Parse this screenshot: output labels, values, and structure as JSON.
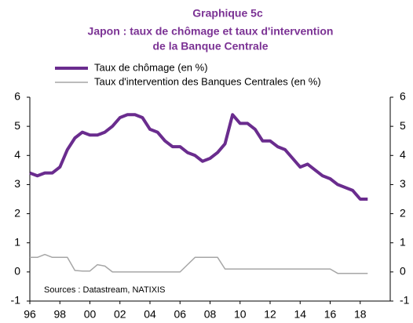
{
  "chart_data": {
    "type": "line",
    "title": "Graphique 5c",
    "subtitle": [
      "Japon : taux de chômage et taux d'intervention",
      "de la Banque Centrale"
    ],
    "annotation": "Sources : Datastream,  NATIXIS",
    "x": [
      1996,
      1996.5,
      1997,
      1997.5,
      1998,
      1998.5,
      1999,
      1999.5,
      2000,
      2000.5,
      2001,
      2001.5,
      2002,
      2002.5,
      2003,
      2003.5,
      2004,
      2004.5,
      2005,
      2005.5,
      2006,
      2006.5,
      2007,
      2007.5,
      2008,
      2008.5,
      2009,
      2009.5,
      2010,
      2010.5,
      2011,
      2011.5,
      2012,
      2012.5,
      2013,
      2013.5,
      2014,
      2014.5,
      2015,
      2015.5,
      2016,
      2016.5,
      2017,
      2017.5,
      2018,
      2018.5
    ],
    "series": [
      {
        "name": "Taux de chômage (en %)",
        "color": "#6a2c8e",
        "values": [
          3.4,
          3.3,
          3.4,
          3.4,
          3.6,
          4.2,
          4.6,
          4.8,
          4.7,
          4.7,
          4.8,
          5.0,
          5.3,
          5.4,
          5.4,
          5.3,
          4.9,
          4.8,
          4.5,
          4.3,
          4.3,
          4.1,
          4.0,
          3.8,
          3.9,
          4.1,
          4.4,
          5.4,
          5.1,
          5.1,
          4.9,
          4.5,
          4.5,
          4.3,
          4.2,
          3.9,
          3.6,
          3.7,
          3.5,
          3.3,
          3.2,
          3.0,
          2.9,
          2.8,
          2.5,
          2.5
        ]
      },
      {
        "name": "Taux d'intervention des Banques Centrales (en %)",
        "color": "#a6a6a6",
        "values": [
          0.5,
          0.5,
          0.6,
          0.5,
          0.5,
          0.5,
          0.05,
          0.03,
          0.03,
          0.25,
          0.2,
          0.0,
          0.0,
          0.0,
          0.0,
          0.0,
          0.0,
          0.0,
          0.0,
          0.0,
          0.0,
          0.25,
          0.5,
          0.5,
          0.5,
          0.5,
          0.1,
          0.1,
          0.1,
          0.1,
          0.1,
          0.1,
          0.1,
          0.1,
          0.1,
          0.1,
          0.1,
          0.1,
          0.1,
          0.1,
          0.1,
          -0.05,
          -0.05,
          -0.05,
          -0.05,
          -0.05
        ]
      }
    ],
    "xlim": [
      1996,
      2020
    ],
    "xticks": [
      {
        "value": 1996,
        "label": "96"
      },
      {
        "value": 1998,
        "label": "98"
      },
      {
        "value": 2000,
        "label": "00"
      },
      {
        "value": 2002,
        "label": "02"
      },
      {
        "value": 2004,
        "label": "04"
      },
      {
        "value": 2006,
        "label": "06"
      },
      {
        "value": 2008,
        "label": "08"
      },
      {
        "value": 2010,
        "label": "10"
      },
      {
        "value": 2012,
        "label": "12"
      },
      {
        "value": 2014,
        "label": "14"
      },
      {
        "value": 2016,
        "label": "16"
      },
      {
        "value": 2018,
        "label": "18"
      }
    ],
    "ylim": [
      -1,
      6
    ],
    "yticks": [
      -1,
      0,
      1,
      2,
      3,
      4,
      5,
      6
    ],
    "grid": false
  }
}
